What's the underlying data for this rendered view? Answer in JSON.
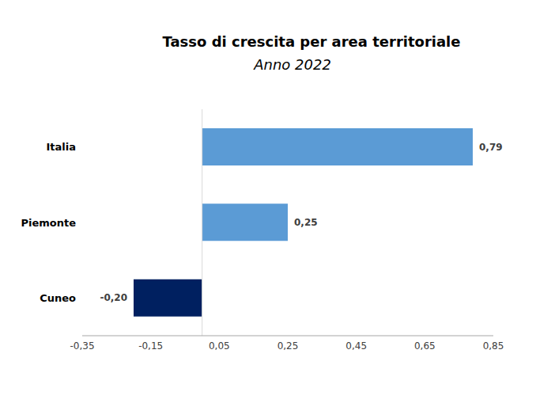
{
  "chart_data": {
    "type": "bar",
    "orientation": "horizontal",
    "title": "Tasso di crescita per area territoriale",
    "subtitle": "Anno 2022",
    "categories": [
      "Italia",
      "Piemonte",
      "Cuneo"
    ],
    "values": [
      0.79,
      0.25,
      -0.2
    ],
    "value_labels": [
      "0,79",
      "0,25",
      "-0,20"
    ],
    "colors": [
      "#5b9bd5",
      "#5b9bd5",
      "#002060"
    ],
    "xlim": [
      -0.35,
      0.85
    ],
    "xticks": [
      {
        "value": -0.35,
        "label": "-0,35"
      },
      {
        "value": -0.15,
        "label": "-0,15"
      },
      {
        "value": 0.05,
        "label": "0,05"
      },
      {
        "value": 0.25,
        "label": "0,25"
      },
      {
        "value": 0.45,
        "label": "0,45"
      },
      {
        "value": 0.65,
        "label": "0,65"
      },
      {
        "value": 0.85,
        "label": "0,85"
      }
    ],
    "grid": false,
    "data_labels": true
  }
}
